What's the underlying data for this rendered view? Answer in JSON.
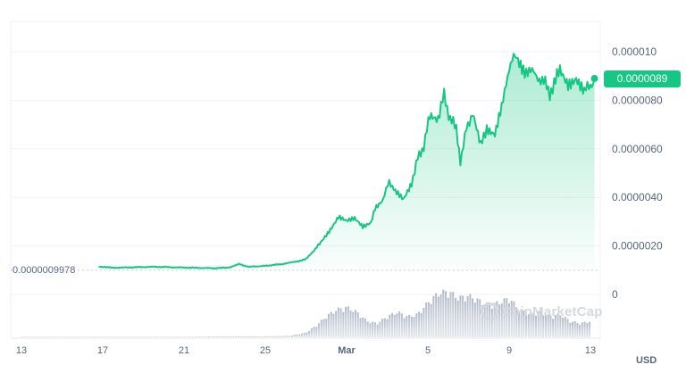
{
  "chart_data": {
    "type": "area",
    "y_ticks": [
      "0.000010",
      "0.0000080",
      "0.0000060",
      "0.0000040",
      "0.0000020",
      "0"
    ],
    "y_tick_values": [
      1e-05,
      8e-06,
      6e-06,
      4e-06,
      2e-06,
      0
    ],
    "x_ticks": [
      "13",
      "17",
      "21",
      "25",
      "Mar",
      "5",
      "9",
      "13"
    ],
    "x_tick_days": [
      13,
      17,
      21,
      25,
      29,
      33,
      37,
      41
    ],
    "ylim": [
      0,
      1.1e-05
    ],
    "current_price_label": "0.0000089",
    "start_price_label": "0.0000009978",
    "currency": "USD",
    "watermark": "CoinMarketCap",
    "line_color": "#16c784",
    "price_series": [
      [
        16.8,
        1.15e-06
      ],
      [
        17.5,
        1.1e-06
      ],
      [
        18.5,
        1.12e-06
      ],
      [
        19.5,
        1.14e-06
      ],
      [
        20.5,
        1.12e-06
      ],
      [
        21.5,
        1.1e-06
      ],
      [
        22.5,
        1.08e-06
      ],
      [
        23.3,
        1.12e-06
      ],
      [
        23.7,
        1.25e-06
      ],
      [
        24.2,
        1.14e-06
      ],
      [
        25.0,
        1.18e-06
      ],
      [
        25.8,
        1.25e-06
      ],
      [
        26.5,
        1.35e-06
      ],
      [
        27.0,
        1.45e-06
      ],
      [
        27.4,
        1.8e-06
      ],
      [
        27.8,
        2.25e-06
      ],
      [
        28.2,
        2.7e-06
      ],
      [
        28.6,
        3.2e-06
      ],
      [
        29.0,
        3e-06
      ],
      [
        29.4,
        3.1e-06
      ],
      [
        29.8,
        2.8e-06
      ],
      [
        30.2,
        3e-06
      ],
      [
        30.4,
        3.6e-06
      ],
      [
        30.8,
        3.9e-06
      ],
      [
        31.1,
        4.7e-06
      ],
      [
        31.4,
        4.2e-06
      ],
      [
        31.8,
        3.9e-06
      ],
      [
        32.2,
        4.6e-06
      ],
      [
        32.5,
        5.6e-06
      ],
      [
        32.8,
        6.1e-06
      ],
      [
        33.1,
        7.4e-06
      ],
      [
        33.5,
        7.3e-06
      ],
      [
        33.8,
        8.2e-06
      ],
      [
        34.1,
        7.2e-06
      ],
      [
        34.4,
        6.9e-06
      ],
      [
        34.6,
        5.5e-06
      ],
      [
        34.9,
        6.8e-06
      ],
      [
        35.2,
        7.5e-06
      ],
      [
        35.6,
        6.1e-06
      ],
      [
        35.9,
        6.9e-06
      ],
      [
        36.3,
        6.6e-06
      ],
      [
        36.7,
        7.9e-06
      ],
      [
        37.0,
        9.4e-06
      ],
      [
        37.3,
        9.8e-06
      ],
      [
        37.7,
        9.3e-06
      ],
      [
        38.2,
        9.1e-06
      ],
      [
        38.7,
        8.8e-06
      ],
      [
        39.0,
        8.3e-06
      ],
      [
        39.5,
        9.2e-06
      ],
      [
        39.9,
        8.7e-06
      ],
      [
        40.3,
        9e-06
      ],
      [
        40.7,
        8.4e-06
      ],
      [
        41.0,
        8.6e-06
      ],
      [
        41.2,
        8.9e-06
      ]
    ],
    "volume_series": [
      [
        13.0,
        0.01
      ],
      [
        16.5,
        0.01
      ],
      [
        18.0,
        0.01
      ],
      [
        21.0,
        0.01
      ],
      [
        23.5,
        0.02
      ],
      [
        25.0,
        0.02
      ],
      [
        26.2,
        0.03
      ],
      [
        27.0,
        0.1
      ],
      [
        27.5,
        0.25
      ],
      [
        28.0,
        0.45
      ],
      [
        28.5,
        0.6
      ],
      [
        29.0,
        0.65
      ],
      [
        29.5,
        0.55
      ],
      [
        30.0,
        0.35
      ],
      [
        30.5,
        0.3
      ],
      [
        31.0,
        0.45
      ],
      [
        31.5,
        0.55
      ],
      [
        32.0,
        0.45
      ],
      [
        32.5,
        0.5
      ],
      [
        33.0,
        0.75
      ],
      [
        33.5,
        0.95
      ],
      [
        34.0,
        1.0
      ],
      [
        34.5,
        0.85
      ],
      [
        35.0,
        0.9
      ],
      [
        35.5,
        0.8
      ],
      [
        36.0,
        0.7
      ],
      [
        36.5,
        0.75
      ],
      [
        37.0,
        0.85
      ],
      [
        37.5,
        0.6
      ],
      [
        38.0,
        0.5
      ],
      [
        38.5,
        0.55
      ],
      [
        39.0,
        0.45
      ],
      [
        39.5,
        0.5
      ],
      [
        40.0,
        0.35
      ],
      [
        40.5,
        0.3
      ],
      [
        41.0,
        0.35
      ]
    ]
  }
}
